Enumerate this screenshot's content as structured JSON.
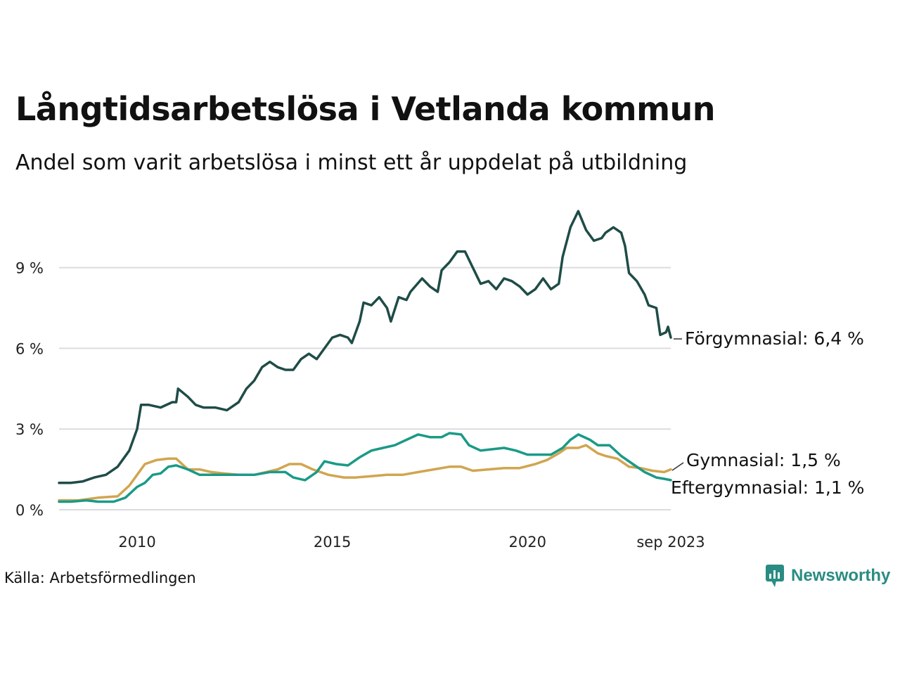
{
  "title": "Långtidsarbetslösa i Vetlanda kommun",
  "subtitle": "Andel som varit arbetslösa i minst ett år uppdelat på utbildning",
  "source": "Källa: Arbetsförmedlingen",
  "brand": {
    "name": "Newsworthy",
    "icon": "newsworthy-logo-icon"
  },
  "colors": {
    "forgymnasial": "#1f4c47",
    "eftergymnasial": "#1a9a87",
    "gymnasial": "#d1a550",
    "grid": "#dcdce0"
  },
  "chart_data": {
    "type": "line",
    "title": "Långtidsarbetslösa i Vetlanda kommun",
    "subtitle": "Andel som varit arbetslösa i minst ett år uppdelat på utbildning",
    "xlabel": "",
    "ylabel": "",
    "x_range": [
      2008.0,
      2023.67
    ],
    "ylim": [
      0,
      11.5
    ],
    "y_ticks": [
      0,
      3,
      6,
      9
    ],
    "y_tick_labels": [
      "0 %",
      "3 %",
      "6 %",
      "9 %"
    ],
    "x_ticks": [
      2010,
      2015,
      2020,
      2023.67
    ],
    "x_tick_labels": [
      "2010",
      "2015",
      "2020",
      "sep 2023"
    ],
    "grid": true,
    "series": [
      {
        "name": "Förgymnasial",
        "color_key": "forgymnasial",
        "end_label": "Förgymnasial: 6,4 %",
        "points": [
          [
            2008.0,
            1.0
          ],
          [
            2008.3,
            1.0
          ],
          [
            2008.6,
            1.05
          ],
          [
            2008.9,
            1.2
          ],
          [
            2009.2,
            1.3
          ],
          [
            2009.5,
            1.6
          ],
          [
            2009.8,
            2.2
          ],
          [
            2010.0,
            3.0
          ],
          [
            2010.1,
            3.9
          ],
          [
            2010.3,
            3.9
          ],
          [
            2010.6,
            3.8
          ],
          [
            2010.9,
            4.0
          ],
          [
            2011.0,
            4.0
          ],
          [
            2011.05,
            4.5
          ],
          [
            2011.3,
            4.2
          ],
          [
            2011.5,
            3.9
          ],
          [
            2011.7,
            3.8
          ],
          [
            2012.0,
            3.8
          ],
          [
            2012.3,
            3.7
          ],
          [
            2012.6,
            4.0
          ],
          [
            2012.8,
            4.5
          ],
          [
            2013.0,
            4.8
          ],
          [
            2013.2,
            5.3
          ],
          [
            2013.4,
            5.5
          ],
          [
            2013.6,
            5.3
          ],
          [
            2013.8,
            5.2
          ],
          [
            2014.0,
            5.2
          ],
          [
            2014.2,
            5.6
          ],
          [
            2014.4,
            5.8
          ],
          [
            2014.6,
            5.6
          ],
          [
            2014.8,
            6.0
          ],
          [
            2015.0,
            6.4
          ],
          [
            2015.2,
            6.5
          ],
          [
            2015.4,
            6.4
          ],
          [
            2015.5,
            6.2
          ],
          [
            2015.7,
            7.0
          ],
          [
            2015.8,
            7.7
          ],
          [
            2016.0,
            7.6
          ],
          [
            2016.2,
            7.9
          ],
          [
            2016.4,
            7.5
          ],
          [
            2016.5,
            7.0
          ],
          [
            2016.7,
            7.9
          ],
          [
            2016.9,
            7.8
          ],
          [
            2017.0,
            8.1
          ],
          [
            2017.3,
            8.6
          ],
          [
            2017.5,
            8.3
          ],
          [
            2017.7,
            8.1
          ],
          [
            2017.8,
            8.9
          ],
          [
            2018.0,
            9.2
          ],
          [
            2018.2,
            9.6
          ],
          [
            2018.4,
            9.6
          ],
          [
            2018.6,
            9.0
          ],
          [
            2018.8,
            8.4
          ],
          [
            2019.0,
            8.5
          ],
          [
            2019.2,
            8.2
          ],
          [
            2019.4,
            8.6
          ],
          [
            2019.6,
            8.5
          ],
          [
            2019.8,
            8.3
          ],
          [
            2020.0,
            8.0
          ],
          [
            2020.2,
            8.2
          ],
          [
            2020.4,
            8.6
          ],
          [
            2020.6,
            8.2
          ],
          [
            2020.8,
            8.4
          ],
          [
            2020.9,
            9.4
          ],
          [
            2021.1,
            10.5
          ],
          [
            2021.3,
            11.1
          ],
          [
            2021.5,
            10.4
          ],
          [
            2021.7,
            10.0
          ],
          [
            2021.9,
            10.1
          ],
          [
            2022.0,
            10.3
          ],
          [
            2022.2,
            10.5
          ],
          [
            2022.4,
            10.3
          ],
          [
            2022.5,
            9.8
          ],
          [
            2022.6,
            8.8
          ],
          [
            2022.8,
            8.5
          ],
          [
            2023.0,
            8.0
          ],
          [
            2023.1,
            7.6
          ],
          [
            2023.3,
            7.5
          ],
          [
            2023.4,
            6.5
          ],
          [
            2023.55,
            6.6
          ],
          [
            2023.6,
            6.8
          ],
          [
            2023.67,
            6.4
          ]
        ]
      },
      {
        "name": "Gymnasial",
        "color_key": "gymnasial",
        "end_label": "Gymnasial: 1,5 %",
        "points": [
          [
            2008.0,
            0.35
          ],
          [
            2008.5,
            0.35
          ],
          [
            2009.0,
            0.45
          ],
          [
            2009.5,
            0.5
          ],
          [
            2009.8,
            0.9
          ],
          [
            2010.0,
            1.3
          ],
          [
            2010.2,
            1.7
          ],
          [
            2010.5,
            1.85
          ],
          [
            2010.8,
            1.9
          ],
          [
            2011.0,
            1.9
          ],
          [
            2011.3,
            1.5
          ],
          [
            2011.6,
            1.5
          ],
          [
            2011.9,
            1.4
          ],
          [
            2012.2,
            1.35
          ],
          [
            2012.6,
            1.3
          ],
          [
            2013.0,
            1.3
          ],
          [
            2013.3,
            1.4
          ],
          [
            2013.6,
            1.5
          ],
          [
            2013.9,
            1.7
          ],
          [
            2014.2,
            1.7
          ],
          [
            2014.5,
            1.5
          ],
          [
            2014.9,
            1.3
          ],
          [
            2015.3,
            1.2
          ],
          [
            2015.6,
            1.2
          ],
          [
            2016.0,
            1.25
          ],
          [
            2016.4,
            1.3
          ],
          [
            2016.8,
            1.3
          ],
          [
            2017.2,
            1.4
          ],
          [
            2017.6,
            1.5
          ],
          [
            2018.0,
            1.6
          ],
          [
            2018.3,
            1.6
          ],
          [
            2018.6,
            1.45
          ],
          [
            2019.0,
            1.5
          ],
          [
            2019.4,
            1.55
          ],
          [
            2019.8,
            1.55
          ],
          [
            2020.2,
            1.7
          ],
          [
            2020.5,
            1.85
          ],
          [
            2020.8,
            2.1
          ],
          [
            2021.0,
            2.3
          ],
          [
            2021.3,
            2.3
          ],
          [
            2021.5,
            2.4
          ],
          [
            2021.8,
            2.1
          ],
          [
            2022.0,
            2.0
          ],
          [
            2022.3,
            1.9
          ],
          [
            2022.6,
            1.6
          ],
          [
            2022.9,
            1.55
          ],
          [
            2023.2,
            1.45
          ],
          [
            2023.5,
            1.4
          ],
          [
            2023.67,
            1.5
          ]
        ]
      },
      {
        "name": "Eftergymnasial",
        "color_key": "eftergymnasial",
        "end_label": "Eftergymnasial: 1,1 %",
        "points": [
          [
            2008.0,
            0.3
          ],
          [
            2008.3,
            0.3
          ],
          [
            2008.7,
            0.35
          ],
          [
            2009.0,
            0.3
          ],
          [
            2009.4,
            0.3
          ],
          [
            2009.7,
            0.45
          ],
          [
            2010.0,
            0.85
          ],
          [
            2010.2,
            1.0
          ],
          [
            2010.4,
            1.3
          ],
          [
            2010.6,
            1.35
          ],
          [
            2010.8,
            1.6
          ],
          [
            2011.0,
            1.65
          ],
          [
            2011.3,
            1.5
          ],
          [
            2011.6,
            1.3
          ],
          [
            2011.9,
            1.3
          ],
          [
            2012.2,
            1.3
          ],
          [
            2012.6,
            1.3
          ],
          [
            2013.0,
            1.3
          ],
          [
            2013.4,
            1.4
          ],
          [
            2013.8,
            1.4
          ],
          [
            2014.0,
            1.2
          ],
          [
            2014.3,
            1.1
          ],
          [
            2014.6,
            1.4
          ],
          [
            2014.8,
            1.8
          ],
          [
            2015.1,
            1.7
          ],
          [
            2015.4,
            1.65
          ],
          [
            2015.7,
            1.95
          ],
          [
            2016.0,
            2.2
          ],
          [
            2016.3,
            2.3
          ],
          [
            2016.6,
            2.4
          ],
          [
            2016.9,
            2.6
          ],
          [
            2017.2,
            2.8
          ],
          [
            2017.5,
            2.7
          ],
          [
            2017.8,
            2.7
          ],
          [
            2018.0,
            2.85
          ],
          [
            2018.3,
            2.8
          ],
          [
            2018.5,
            2.4
          ],
          [
            2018.8,
            2.2
          ],
          [
            2019.1,
            2.25
          ],
          [
            2019.4,
            2.3
          ],
          [
            2019.7,
            2.2
          ],
          [
            2020.0,
            2.05
          ],
          [
            2020.3,
            2.05
          ],
          [
            2020.6,
            2.05
          ],
          [
            2020.9,
            2.3
          ],
          [
            2021.1,
            2.6
          ],
          [
            2021.3,
            2.8
          ],
          [
            2021.6,
            2.6
          ],
          [
            2021.8,
            2.4
          ],
          [
            2022.1,
            2.4
          ],
          [
            2022.4,
            2.0
          ],
          [
            2022.7,
            1.7
          ],
          [
            2023.0,
            1.4
          ],
          [
            2023.3,
            1.2
          ],
          [
            2023.5,
            1.15
          ],
          [
            2023.67,
            1.1
          ]
        ]
      }
    ]
  }
}
